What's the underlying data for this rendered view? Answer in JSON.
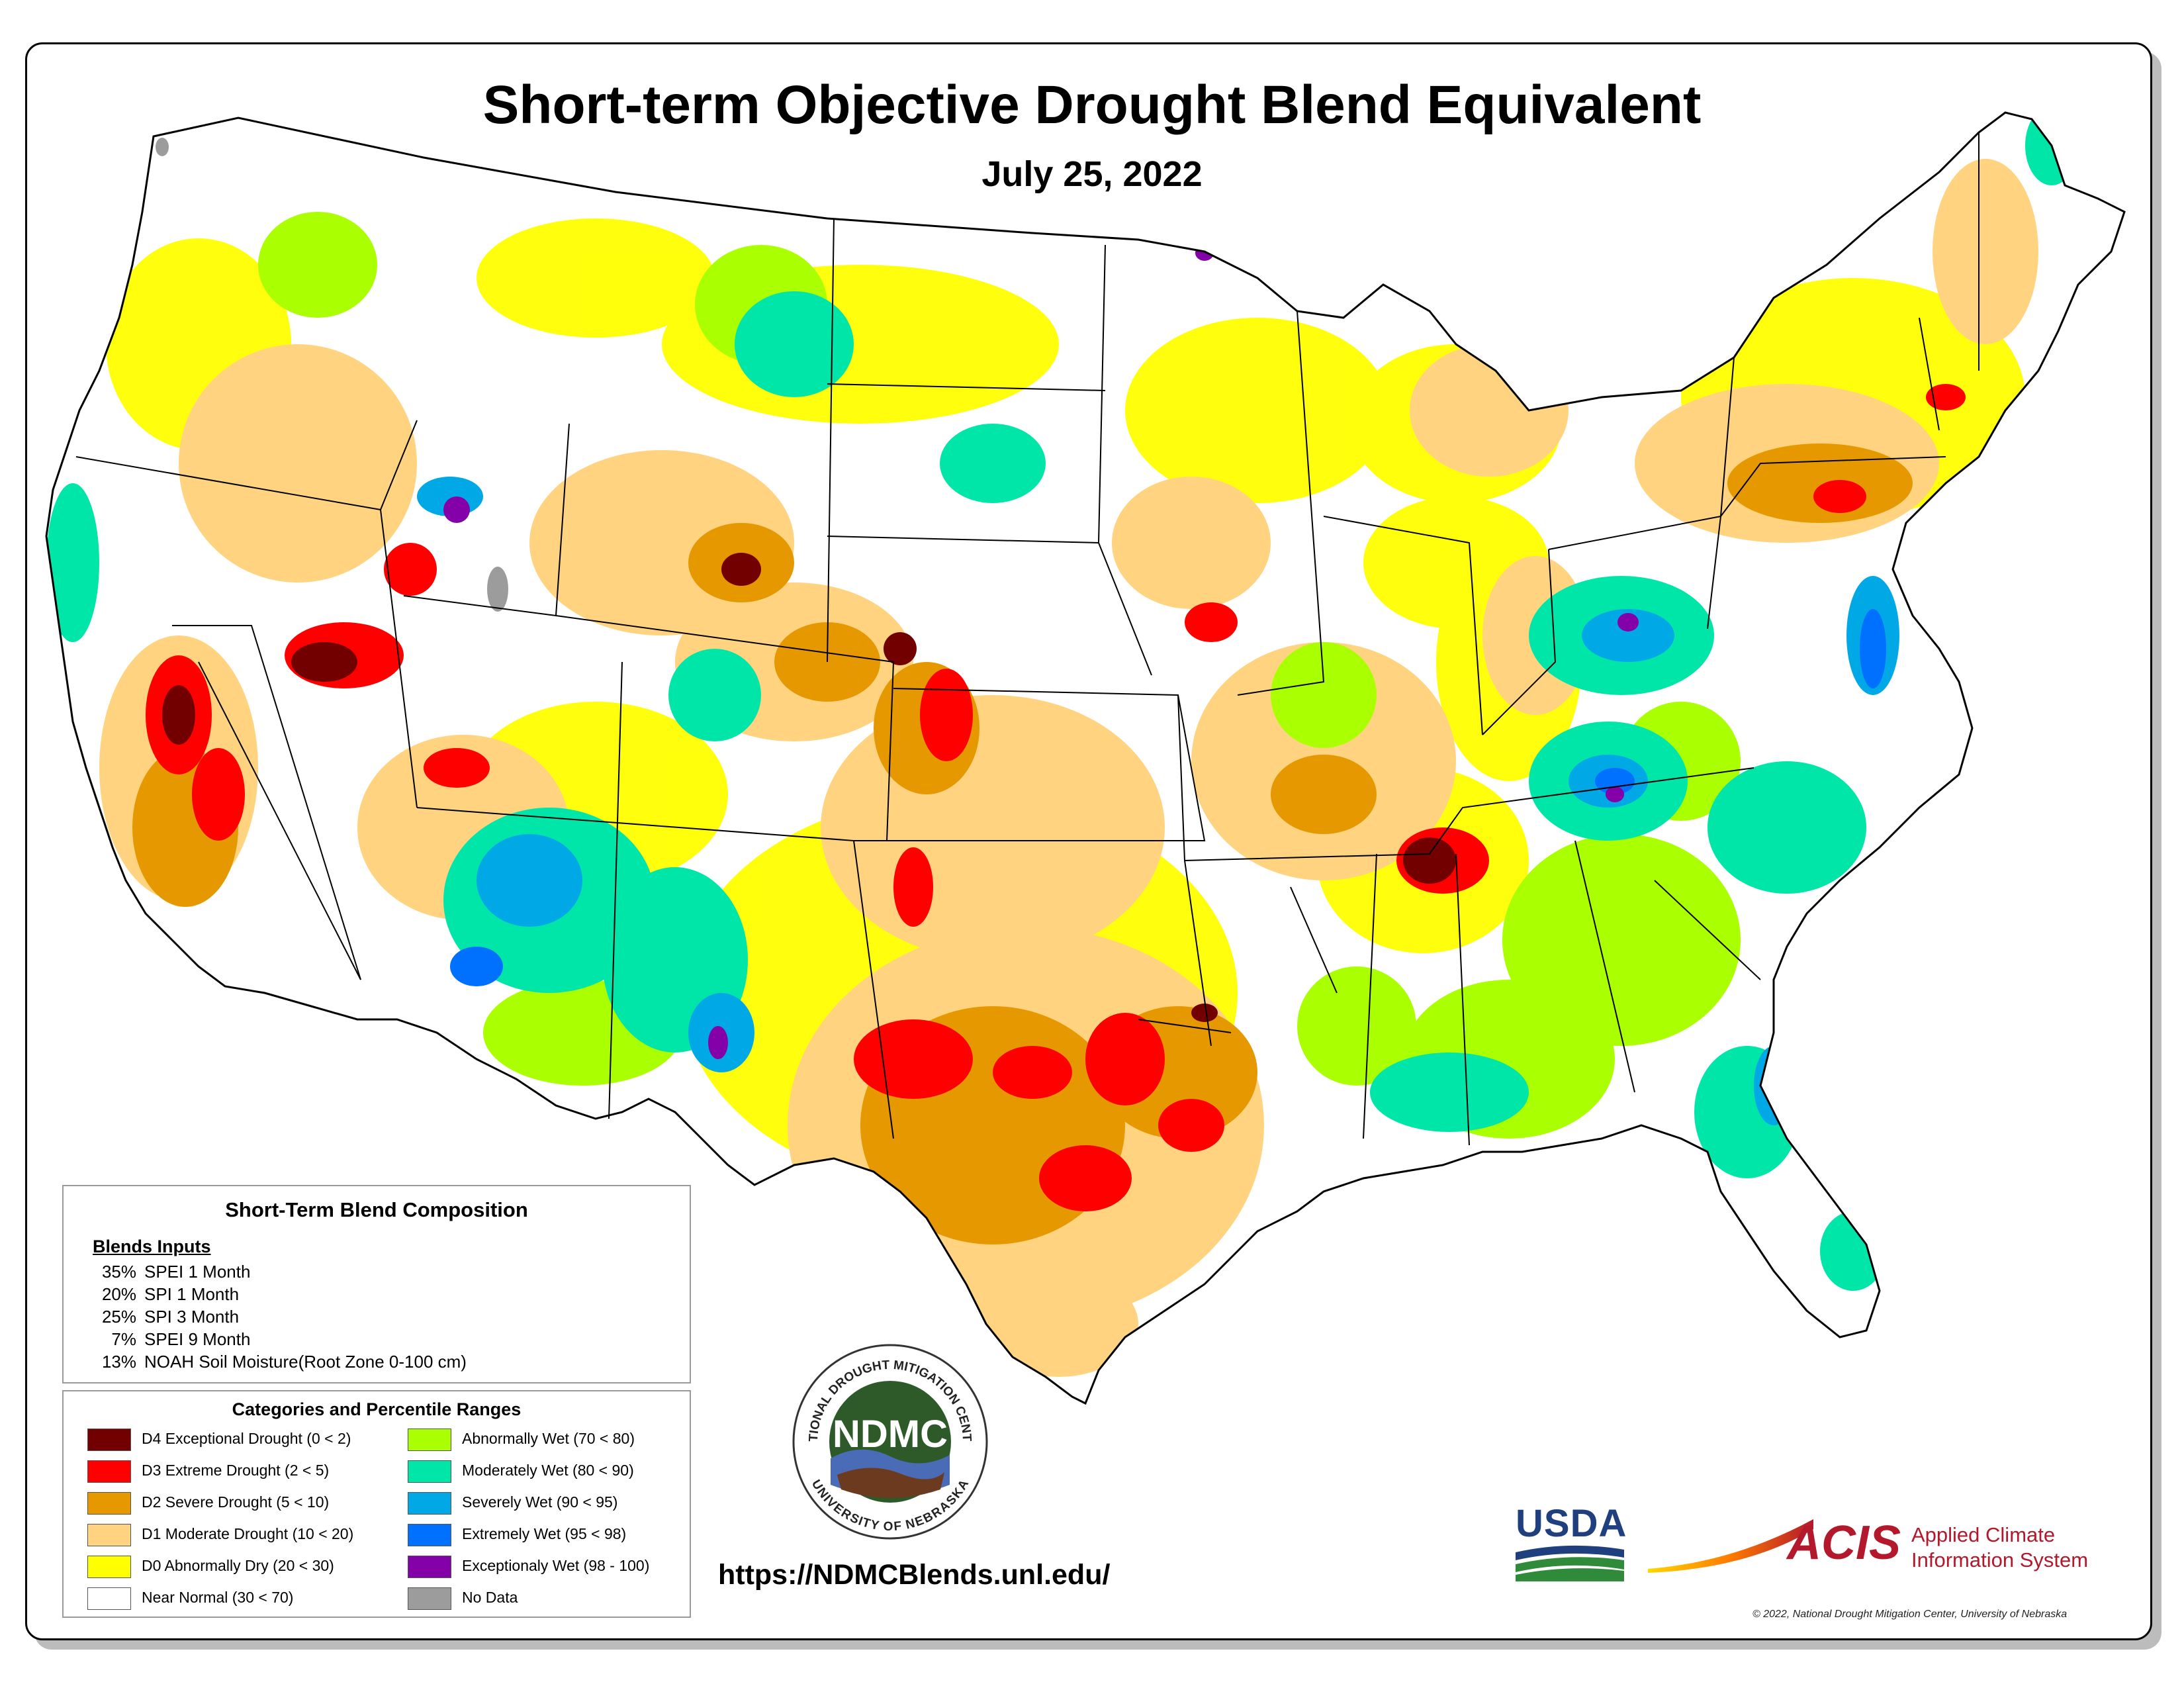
{
  "header": {
    "title": "Short-term Objective Drought Blend Equivalent",
    "date": "July 25, 2022"
  },
  "composition": {
    "heading": "Short-Term Blend Composition",
    "subheading": "Blends Inputs",
    "inputs": [
      {
        "pct": "35%",
        "name": "SPEI 1 Month"
      },
      {
        "pct": "20%",
        "name": "SPI 1 Month"
      },
      {
        "pct": "25%",
        "name": "SPI 3 Month"
      },
      {
        "pct": "7%",
        "name": "SPEI 9 Month"
      },
      {
        "pct": "13%",
        "name": "NOAH Soil Moisture(Root Zone 0-100 cm)"
      }
    ]
  },
  "legend": {
    "heading": "Categories and Percentile Ranges",
    "categories": [
      {
        "label": "D4 Exceptional Drought (0 < 2)",
        "color": "#730000"
      },
      {
        "label": "D3 Extreme Drought (2 < 5)",
        "color": "#ff0000"
      },
      {
        "label": "D2 Severe Drought (5 < 10)",
        "color": "#e69800"
      },
      {
        "label": "D1 Moderate Drought (10 < 20)",
        "color": "#ffd37f"
      },
      {
        "label": "D0 Abnormally Dry (20 < 30)",
        "color": "#ffff00"
      },
      {
        "label": "Near Normal (30 < 70)",
        "color": "#ffffff"
      },
      {
        "label": "Abnormally Wet (70 < 80)",
        "color": "#aaff00"
      },
      {
        "label": "Moderately Wet (80 < 90)",
        "color": "#00e6a9"
      },
      {
        "label": "Severely Wet (90 < 95)",
        "color": "#00a9e6"
      },
      {
        "label": "Extremely Wet (95 < 98)",
        "color": "#0070ff"
      },
      {
        "label": "Exceptionaly Wet (98 - 100)",
        "color": "#8400a8"
      },
      {
        "label": "No Data",
        "color": "#9c9c9c"
      }
    ]
  },
  "logo_ndmc": {
    "ring_top": "NATIONAL DROUGHT MITIGATION CENTER",
    "center": "NDMC",
    "ring_bottom": "UNIVERSITY OF NEBRASKA"
  },
  "url": "https://NDMCBlends.unl.edu/",
  "usda_label": "USDA",
  "acis": {
    "name": "ACIS",
    "line1": "Applied Climate",
    "line2": "Information System"
  },
  "copyright": "© 2022, National Drought Mitigation Center, University of Nebraska"
}
